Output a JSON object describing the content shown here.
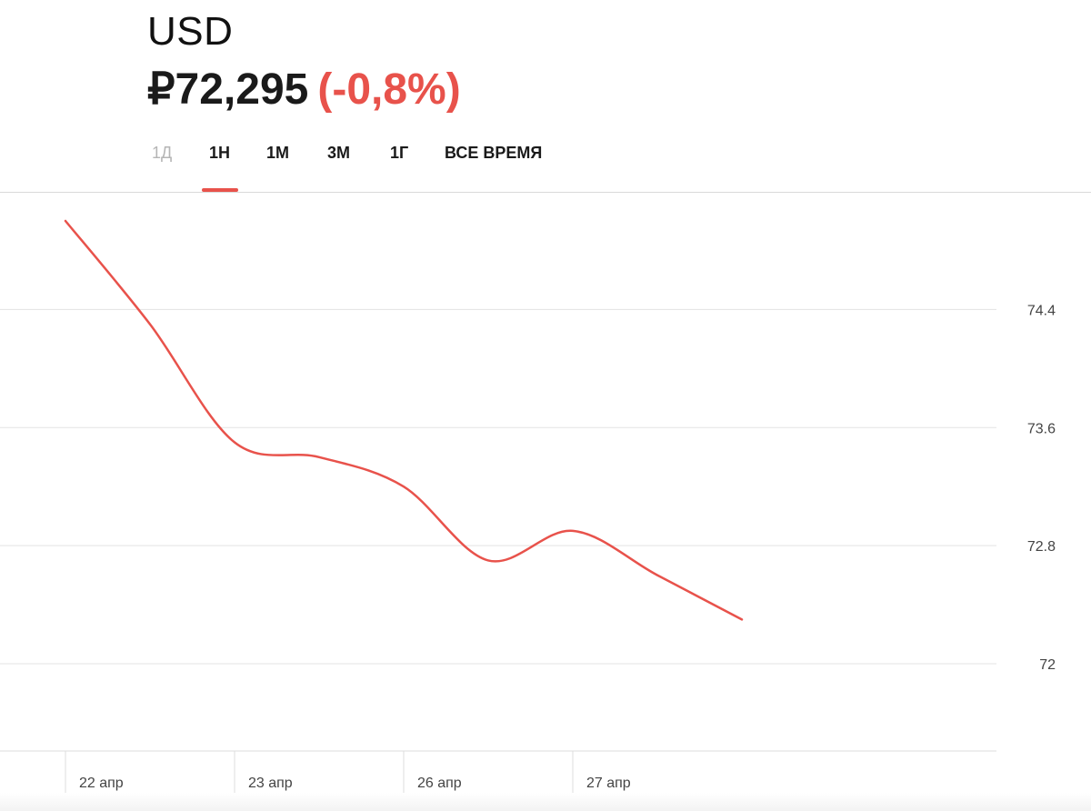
{
  "header": {
    "symbol": "USD",
    "price": "₽72,295",
    "change": "(-0,8%)"
  },
  "tabs": [
    {
      "label": "1Д",
      "active": false,
      "disabled": true
    },
    {
      "label": "1Н",
      "active": true,
      "disabled": false
    },
    {
      "label": "1М",
      "active": false,
      "disabled": false
    },
    {
      "label": "3М",
      "active": false,
      "disabled": false
    },
    {
      "label": "1Г",
      "active": false,
      "disabled": false
    },
    {
      "label": "ВСЕ ВРЕМЯ",
      "active": false,
      "disabled": false
    }
  ],
  "colors": {
    "accent": "#e8524b",
    "text": "#1a1a1a",
    "muted": "#b5b5b5",
    "grid": "#e3e3e3",
    "axis_text": "#444444"
  },
  "chart_data": {
    "type": "line",
    "title": "",
    "xlabel": "",
    "ylabel": "",
    "x_ticks": [
      "22 апр",
      "23 апр",
      "26 апр",
      "27 апр"
    ],
    "y_ticks": [
      72,
      72.8,
      73.6,
      74.4
    ],
    "y_tick_labels": [
      "72",
      "72.8",
      "73.6",
      "74.4"
    ],
    "ylim": [
      71.6,
      75.0
    ],
    "grid": true,
    "series": [
      {
        "color": "#e8524b",
        "x": [
          "22 апр 00:00",
          "22 апр 12:00",
          "23 апр 00:00",
          "23 апр 12:00",
          "26 апр 00:00",
          "26 апр 12:00",
          "27 апр 00:00",
          "27 апр 12:00",
          "28 апр 00:00"
        ],
        "y": [
          75.0,
          74.3,
          73.5,
          73.4,
          73.2,
          72.7,
          72.9,
          72.6,
          72.3
        ]
      }
    ]
  }
}
